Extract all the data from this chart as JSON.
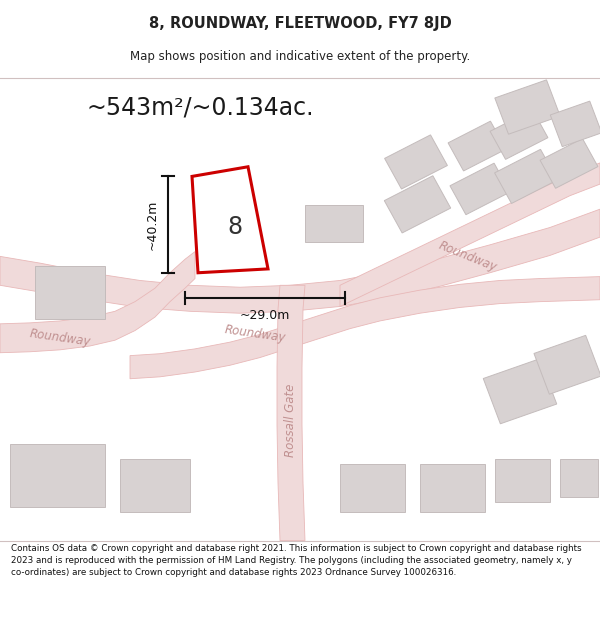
{
  "title": "8, ROUNDWAY, FLEETWOOD, FY7 8JD",
  "subtitle": "Map shows position and indicative extent of the property.",
  "area_text": "~543m²/~0.134ac.",
  "dim_height": "~40.2m",
  "dim_width": "~29.0m",
  "property_number": "8",
  "footer": "Contains OS data © Crown copyright and database right 2021. This information is subject to Crown copyright and database rights 2023 and is reproduced with the permission of HM Land Registry. The polygons (including the associated geometry, namely x, y co-ordinates) are subject to Crown copyright and database rights 2023 Ordnance Survey 100026316.",
  "title_color": "#222222",
  "road_outline_color": "#e8b8b8",
  "road_fill_color": "#f0dada",
  "building_fill": "#d8d2d2",
  "building_edge": "#c4bcbc",
  "plot_edge": "#cc0000",
  "plot_fill": "#ffffff",
  "dim_color": "#111111",
  "road_label_color": "#c09090",
  "number_color": "#333333",
  "map_bg": "#f5f0f0",
  "white": "#ffffff"
}
